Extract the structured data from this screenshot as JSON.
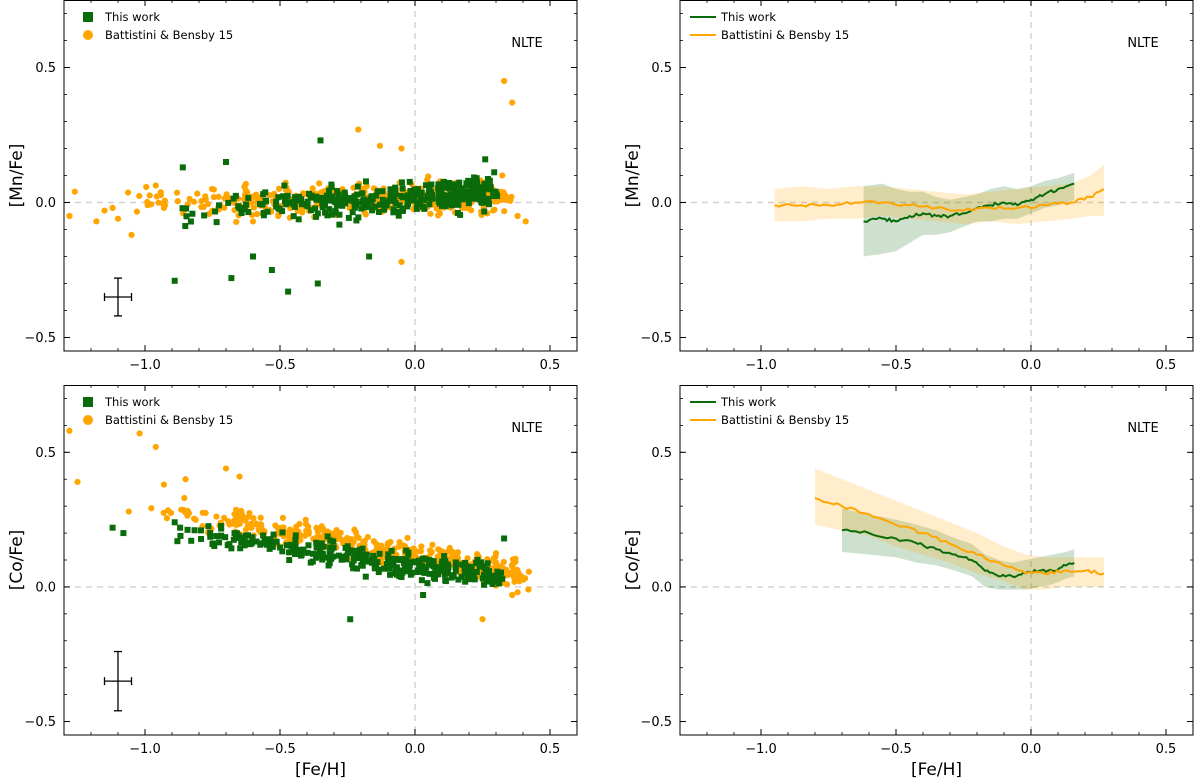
{
  "colors": {
    "this_work": "#0a6b0a",
    "battistini": "#ffa500",
    "zero_line": "#d0d0d0"
  },
  "chart_data": [
    {
      "id": "mn-scatter",
      "type": "scatter",
      "xlabel": "",
      "ylabel": "[Mn/Fe]",
      "xlim": [
        -1.3,
        0.6
      ],
      "ylim": [
        -0.55,
        0.75
      ],
      "xticks": [
        -1.0,
        -0.5,
        0.0,
        0.5
      ],
      "xtick_labels": [
        "−1.0",
        "−0.5",
        "0.0",
        "0.5"
      ],
      "yticks": [
        -0.5,
        0.0,
        0.5
      ],
      "ytick_labels": [
        "−0.5",
        "0.0",
        "0.5"
      ],
      "annotation": "NLTE",
      "legend": [
        "This work",
        "Battistini & Bensby 15"
      ],
      "error_bar": {
        "x": -1.1,
        "y": -0.35,
        "xerr": 0.05,
        "yerr": 0.07
      },
      "series": [
        {
          "name": "This work",
          "marker": "square",
          "color": "#0a6b0a",
          "trend": {
            "x0": -0.9,
            "x1": 0.3,
            "y0": -0.04,
            "y1": 0.04
          },
          "spread": 0.06,
          "points": [
            [
              -0.86,
              0.13
            ],
            [
              -0.89,
              -0.29
            ],
            [
              -0.7,
              0.15
            ],
            [
              -0.35,
              0.23
            ],
            [
              -0.53,
              -0.25
            ],
            [
              -0.47,
              -0.33
            ],
            [
              -0.36,
              -0.3
            ],
            [
              -0.6,
              -0.2
            ],
            [
              -0.68,
              -0.28
            ],
            [
              0.26,
              0.16
            ],
            [
              -0.17,
              -0.2
            ]
          ]
        },
        {
          "name": "Battistini & Bensby 15",
          "marker": "circle",
          "color": "#ffa500",
          "trend": {
            "x0": -1.1,
            "x1": 0.35,
            "y0": 0.0,
            "y1": 0.02
          },
          "spread": 0.06,
          "points": [
            [
              -1.28,
              -0.05
            ],
            [
              -1.26,
              0.04
            ],
            [
              -1.18,
              -0.07
            ],
            [
              -1.15,
              -0.03
            ],
            [
              -1.12,
              -0.02
            ],
            [
              -1.1,
              -0.06
            ],
            [
              -1.05,
              -0.12
            ],
            [
              -0.99,
              -0.01
            ],
            [
              -0.93,
              -0.02
            ],
            [
              0.33,
              0.45
            ],
            [
              0.36,
              0.37
            ],
            [
              0.38,
              -0.05
            ],
            [
              0.41,
              -0.07
            ],
            [
              -0.21,
              0.27
            ],
            [
              -0.13,
              0.21
            ],
            [
              -0.05,
              0.2
            ],
            [
              -0.05,
              -0.22
            ]
          ]
        }
      ]
    },
    {
      "id": "mn-trend",
      "type": "line",
      "xlabel": "",
      "ylabel": "[Mn/Fe]",
      "xlim": [
        -1.3,
        0.6
      ],
      "ylim": [
        -0.55,
        0.75
      ],
      "xticks": [
        -1.0,
        -0.5,
        0.0,
        0.5
      ],
      "xtick_labels": [
        "−1.0",
        "−0.5",
        "0.0",
        "0.5"
      ],
      "yticks": [
        -0.5,
        0.0,
        0.5
      ],
      "ytick_labels": [
        "−0.5",
        "0.0",
        "0.5"
      ],
      "annotation": "NLTE",
      "legend": [
        "This work",
        "Battistini & Bensby 15"
      ],
      "series": [
        {
          "name": "This work",
          "color": "#0a6b0a",
          "x": [
            -0.62,
            -0.55,
            -0.5,
            -0.45,
            -0.4,
            -0.35,
            -0.3,
            -0.25,
            -0.2,
            -0.15,
            -0.1,
            -0.05,
            0.0,
            0.05,
            0.1,
            0.16
          ],
          "y": [
            -0.07,
            -0.06,
            -0.07,
            -0.05,
            -0.04,
            -0.05,
            -0.05,
            -0.04,
            -0.02,
            -0.01,
            0.0,
            -0.01,
            0.01,
            0.03,
            0.05,
            0.07
          ],
          "lo": [
            -0.2,
            -0.19,
            -0.18,
            -0.15,
            -0.12,
            -0.12,
            -0.11,
            -0.09,
            -0.07,
            -0.07,
            -0.06,
            -0.06,
            -0.04,
            -0.02,
            -0.01,
            0.01
          ],
          "hi": [
            0.06,
            0.07,
            0.05,
            0.04,
            0.04,
            0.02,
            0.01,
            0.02,
            0.03,
            0.05,
            0.06,
            0.05,
            0.06,
            0.08,
            0.09,
            0.11
          ]
        },
        {
          "name": "Battistini & Bensby 15",
          "color": "#ffa500",
          "x": [
            -0.95,
            -0.85,
            -0.75,
            -0.65,
            -0.55,
            -0.45,
            -0.35,
            -0.25,
            -0.15,
            -0.05,
            0.05,
            0.15,
            0.22,
            0.27
          ],
          "y": [
            -0.01,
            -0.01,
            -0.01,
            0.0,
            0.0,
            -0.01,
            -0.02,
            -0.03,
            -0.02,
            -0.02,
            -0.01,
            0.0,
            0.02,
            0.05
          ],
          "lo": [
            -0.07,
            -0.07,
            -0.06,
            -0.06,
            -0.05,
            -0.06,
            -0.07,
            -0.08,
            -0.07,
            -0.08,
            -0.07,
            -0.06,
            -0.05,
            -0.05
          ],
          "hi": [
            0.05,
            0.06,
            0.05,
            0.06,
            0.06,
            0.05,
            0.04,
            0.03,
            0.04,
            0.05,
            0.06,
            0.07,
            0.1,
            0.14
          ]
        }
      ]
    },
    {
      "id": "co-scatter",
      "type": "scatter",
      "xlabel": "[Fe/H]",
      "ylabel": "[Co/Fe]",
      "xlim": [
        -1.3,
        0.6
      ],
      "ylim": [
        -0.55,
        0.75
      ],
      "xticks": [
        -1.0,
        -0.5,
        0.0,
        0.5
      ],
      "xtick_labels": [
        "−1.0",
        "−0.5",
        "0.0",
        "0.5"
      ],
      "yticks": [
        -0.5,
        0.0,
        0.5
      ],
      "ytick_labels": [
        "−0.5",
        "0.0",
        "0.5"
      ],
      "annotation": "NLTE",
      "legend": [
        "This work",
        "Battistini & Bensby 15"
      ],
      "error_bar": {
        "x": -1.1,
        "y": -0.35,
        "xerr": 0.05,
        "yerr": 0.11
      },
      "series": [
        {
          "name": "This work",
          "marker": "square",
          "color": "#0a6b0a",
          "trend": {
            "x0": -0.9,
            "x1": 0.3,
            "y0": 0.2,
            "y1": 0.04
          },
          "spread": 0.045,
          "points": [
            [
              -1.12,
              0.22
            ],
            [
              -1.08,
              0.2
            ],
            [
              -0.88,
              0.17
            ],
            [
              -0.89,
              0.24
            ],
            [
              -0.87,
              0.22
            ],
            [
              -0.24,
              -0.12
            ],
            [
              0.33,
              0.18
            ],
            [
              0.03,
              -0.03
            ]
          ]
        },
        {
          "name": "Battistini & Bensby 15",
          "marker": "circle",
          "color": "#ffa500",
          "trend": {
            "x0": -1.0,
            "x1": 0.4,
            "y0": 0.3,
            "y1": 0.04
          },
          "spread": 0.05,
          "points": [
            [
              -1.28,
              0.58
            ],
            [
              -1.25,
              0.39
            ],
            [
              -1.02,
              0.57
            ],
            [
              -0.96,
              0.52
            ],
            [
              -0.93,
              0.38
            ],
            [
              -1.06,
              0.28
            ],
            [
              -0.85,
              0.4
            ],
            [
              -0.7,
              0.44
            ],
            [
              -0.65,
              0.41
            ],
            [
              0.25,
              -0.12
            ],
            [
              0.38,
              -0.02
            ],
            [
              0.42,
              -0.01
            ],
            [
              0.36,
              -0.03
            ]
          ]
        }
      ]
    },
    {
      "id": "co-trend",
      "type": "line",
      "xlabel": "[Fe/H]",
      "ylabel": "[Co/Fe]",
      "xlim": [
        -1.3,
        0.6
      ],
      "ylim": [
        -0.55,
        0.75
      ],
      "xticks": [
        -1.0,
        -0.5,
        0.0,
        0.5
      ],
      "xtick_labels": [
        "−1.0",
        "−0.5",
        "0.0",
        "0.5"
      ],
      "yticks": [
        -0.5,
        0.0,
        0.5
      ],
      "ytick_labels": [
        "−0.5",
        "0.0",
        "0.5"
      ],
      "annotation": "NLTE",
      "legend": [
        "This work",
        "Battistini & Bensby 15"
      ],
      "series": [
        {
          "name": "This work",
          "color": "#0a6b0a",
          "x": [
            -0.7,
            -0.6,
            -0.5,
            -0.42,
            -0.35,
            -0.28,
            -0.22,
            -0.17,
            -0.12,
            -0.07,
            -0.02,
            0.03,
            0.08,
            0.13,
            0.16
          ],
          "y": [
            0.21,
            0.2,
            0.18,
            0.16,
            0.14,
            0.12,
            0.1,
            0.06,
            0.04,
            0.04,
            0.05,
            0.06,
            0.06,
            0.08,
            0.09
          ],
          "lo": [
            0.13,
            0.12,
            0.11,
            0.09,
            0.08,
            0.06,
            0.04,
            0.0,
            -0.01,
            -0.01,
            -0.01,
            0.0,
            0.01,
            0.03,
            0.04
          ],
          "hi": [
            0.29,
            0.27,
            0.25,
            0.23,
            0.21,
            0.18,
            0.16,
            0.12,
            0.1,
            0.09,
            0.1,
            0.11,
            0.12,
            0.13,
            0.14
          ]
        },
        {
          "name": "Battistini & Bensby 15",
          "color": "#ffa500",
          "x": [
            -0.8,
            -0.7,
            -0.6,
            -0.5,
            -0.4,
            -0.3,
            -0.2,
            -0.1,
            -0.02,
            0.05,
            0.12,
            0.2,
            0.27
          ],
          "y": [
            0.33,
            0.3,
            0.27,
            0.23,
            0.2,
            0.16,
            0.12,
            0.08,
            0.05,
            0.05,
            0.06,
            0.06,
            0.05
          ],
          "lo": [
            0.23,
            0.21,
            0.19,
            0.15,
            0.12,
            0.09,
            0.05,
            0.02,
            -0.01,
            -0.01,
            0.0,
            0.0,
            0.0
          ],
          "hi": [
            0.44,
            0.4,
            0.36,
            0.32,
            0.28,
            0.24,
            0.2,
            0.15,
            0.12,
            0.11,
            0.11,
            0.11,
            0.11
          ]
        }
      ]
    }
  ]
}
